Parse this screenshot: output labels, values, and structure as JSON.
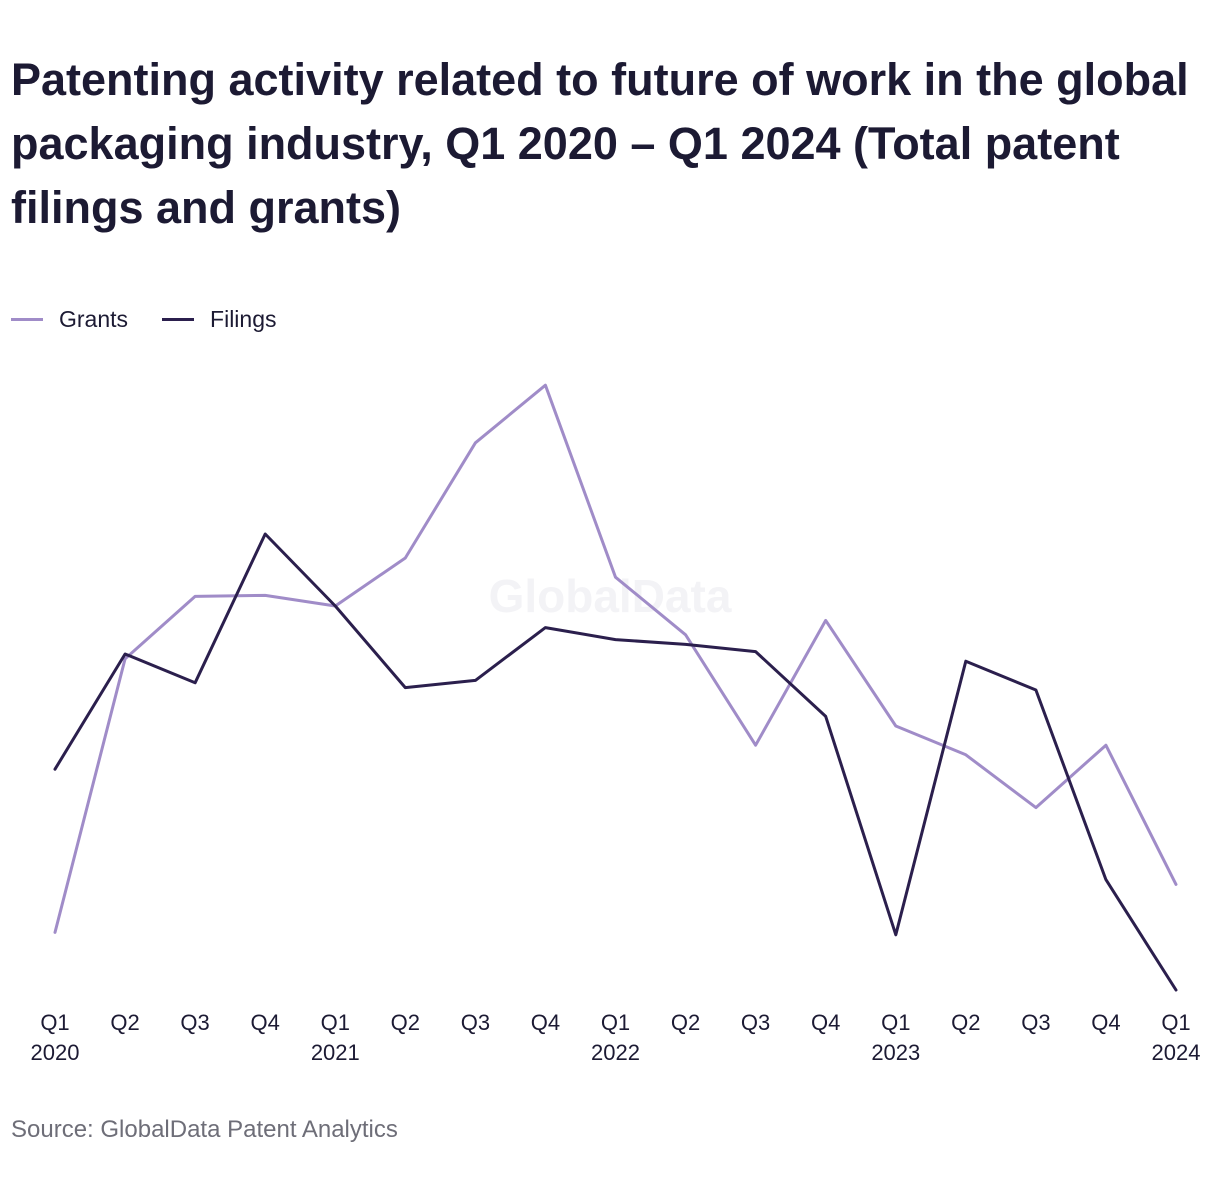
{
  "chart_data": {
    "type": "line",
    "title": "Patenting activity related to future of work in the global packaging industry, Q1 2020 – Q1 2024 (Total patent filings and grants)",
    "categories": [
      "Q1 2020",
      "Q2 2020",
      "Q3 2020",
      "Q4 2020",
      "Q1 2021",
      "Q2 2021",
      "Q3 2021",
      "Q4 2021",
      "Q1 2022",
      "Q2 2022",
      "Q3 2022",
      "Q4 2022",
      "Q1 2023",
      "Q2 2023",
      "Q3 2023",
      "Q4 2023",
      "Q1 2024"
    ],
    "tick_labels": [
      {
        "quarter": "Q1",
        "year": "2020"
      },
      {
        "quarter": "Q2",
        "year": ""
      },
      {
        "quarter": "Q3",
        "year": ""
      },
      {
        "quarter": "Q4",
        "year": ""
      },
      {
        "quarter": "Q1",
        "year": "2021"
      },
      {
        "quarter": "Q2",
        "year": ""
      },
      {
        "quarter": "Q3",
        "year": ""
      },
      {
        "quarter": "Q4",
        "year": ""
      },
      {
        "quarter": "Q1",
        "year": "2022"
      },
      {
        "quarter": "Q2",
        "year": ""
      },
      {
        "quarter": "Q3",
        "year": ""
      },
      {
        "quarter": "Q4",
        "year": ""
      },
      {
        "quarter": "Q1",
        "year": "2023"
      },
      {
        "quarter": "Q2",
        "year": ""
      },
      {
        "quarter": "Q3",
        "year": ""
      },
      {
        "quarter": "Q4",
        "year": ""
      },
      {
        "quarter": "Q1",
        "year": "2024"
      }
    ],
    "ylim": [
      0,
      125
    ],
    "series": [
      {
        "name": "Grants",
        "color": "#a08cc8",
        "values": [
          12,
          69,
          82,
          82.2,
          80,
          90,
          114,
          126,
          86,
          74,
          51,
          77,
          55,
          49,
          38,
          51,
          22
        ]
      },
      {
        "name": "Filings",
        "color": "#2b1f4d",
        "values": [
          46,
          70,
          64,
          95,
          80,
          63,
          64.5,
          75.5,
          73,
          72,
          70.5,
          57,
          11.5,
          68.5,
          62.5,
          23,
          0
        ]
      }
    ],
    "xlabel": "",
    "ylabel": "",
    "grid": false,
    "legend_position": "top-left",
    "watermark": "GlobalData"
  },
  "footer": {
    "source": "Source: GlobalData Patent Analytics"
  }
}
